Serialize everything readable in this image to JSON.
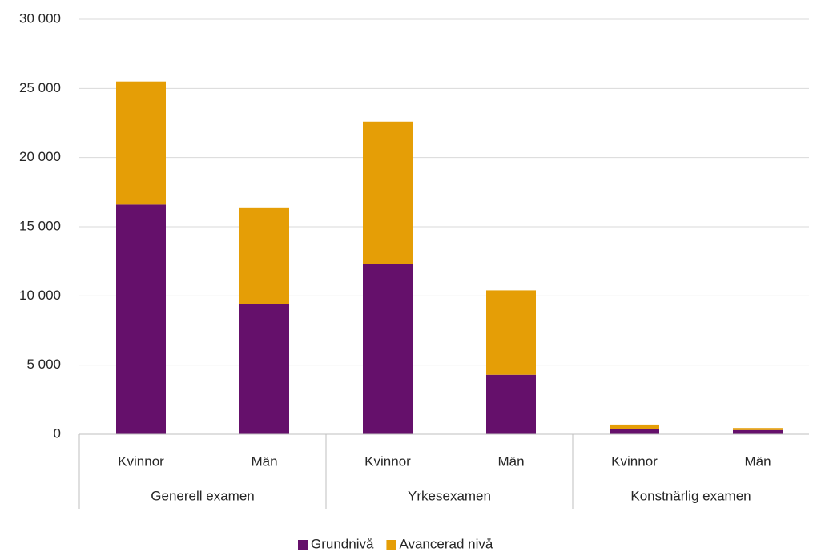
{
  "chart_data": {
    "type": "stacked_bar",
    "groups": [
      {
        "name": "Generell examen",
        "categories": [
          "Kvinnor",
          "Män"
        ]
      },
      {
        "name": "Yrkesexamen",
        "categories": [
          "Kvinnor",
          "Män"
        ]
      },
      {
        "name": "Konstnärlig examen",
        "categories": [
          "Kvinnor",
          "Män"
        ]
      }
    ],
    "series": [
      {
        "name": "Grundnivå",
        "color": "#65106b",
        "values": [
          16600,
          9400,
          12300,
          4300,
          400,
          300
        ]
      },
      {
        "name": "Avancerad nivå",
        "color": "#e59e06",
        "values": [
          8900,
          7000,
          10300,
          6100,
          300,
          150
        ]
      }
    ],
    "ylim": [
      0,
      30000
    ],
    "yticks": [
      0,
      {
        "value": 5000,
        "label": "5 000"
      },
      {
        "value": 10000,
        "label": "10 000"
      },
      {
        "value": 15000,
        "label": "15 000"
      },
      {
        "value": 20000,
        "label": "20 000"
      },
      {
        "value": 25000,
        "label": "25 000"
      },
      {
        "value": 30000,
        "label": "30 000"
      }
    ],
    "grid": true,
    "legend": "bottom"
  }
}
